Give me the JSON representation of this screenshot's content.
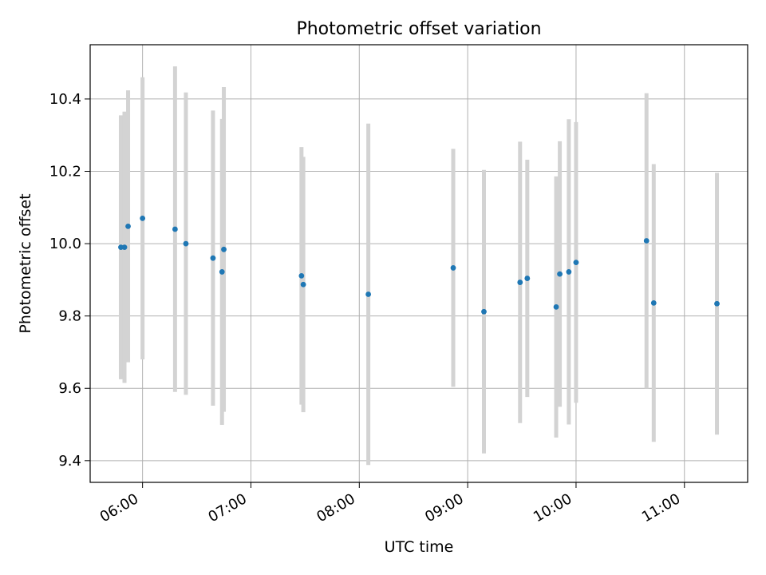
{
  "chart_data": {
    "type": "scatter",
    "title": "Photometric offset variation",
    "xlabel": "UTC time",
    "ylabel": "Photometric offset",
    "xlim": [
      "05:31",
      "11:35"
    ],
    "ylim": [
      9.34,
      10.55
    ],
    "x_ticks": [
      "06:00",
      "07:00",
      "08:00",
      "09:00",
      "10:00",
      "11:00"
    ],
    "y_ticks": [
      9.4,
      9.6,
      9.8,
      10.0,
      10.2,
      10.4
    ],
    "y_tick_labels": [
      "9.4",
      "9.6",
      "9.8",
      "10.0",
      "10.2",
      "10.4"
    ],
    "grid": true,
    "marker_color": "#1f77b4",
    "errorbar_color": "#d3d3d3",
    "series": [
      {
        "points": [
          {
            "x": "05:48",
            "y": 9.99,
            "ylow": 9.625,
            "yhigh": 10.355
          },
          {
            "x": "05:50",
            "y": 9.99,
            "ylow": 9.615,
            "yhigh": 10.365
          },
          {
            "x": "05:52",
            "y": 10.048,
            "ylow": 9.672,
            "yhigh": 10.424
          },
          {
            "x": "06:00",
            "y": 10.07,
            "ylow": 9.68,
            "yhigh": 10.46
          },
          {
            "x": "06:18",
            "y": 10.04,
            "ylow": 9.59,
            "yhigh": 10.49
          },
          {
            "x": "06:24",
            "y": 10.0,
            "ylow": 9.582,
            "yhigh": 10.418
          },
          {
            "x": "06:39",
            "y": 9.96,
            "ylow": 9.552,
            "yhigh": 10.368
          },
          {
            "x": "06:44",
            "y": 9.922,
            "ylow": 9.499,
            "yhigh": 10.345
          },
          {
            "x": "06:45",
            "y": 9.984,
            "ylow": 9.535,
            "yhigh": 10.433
          },
          {
            "x": "07:28",
            "y": 9.911,
            "ylow": 9.555,
            "yhigh": 10.267
          },
          {
            "x": "07:29",
            "y": 9.887,
            "ylow": 9.534,
            "yhigh": 10.24
          },
          {
            "x": "08:05",
            "y": 9.86,
            "ylow": 9.388,
            "yhigh": 10.332
          },
          {
            "x": "08:52",
            "y": 9.933,
            "ylow": 9.604,
            "yhigh": 10.262
          },
          {
            "x": "09:09",
            "y": 9.812,
            "ylow": 9.42,
            "yhigh": 10.204
          },
          {
            "x": "09:29",
            "y": 9.893,
            "ylow": 9.504,
            "yhigh": 10.282
          },
          {
            "x": "09:33",
            "y": 9.904,
            "ylow": 9.576,
            "yhigh": 10.232
          },
          {
            "x": "09:49",
            "y": 9.825,
            "ylow": 9.464,
            "yhigh": 10.186
          },
          {
            "x": "09:51",
            "y": 9.916,
            "ylow": 9.549,
            "yhigh": 10.283
          },
          {
            "x": "09:56",
            "y": 9.922,
            "ylow": 9.5,
            "yhigh": 10.344
          },
          {
            "x": "10:00",
            "y": 9.948,
            "ylow": 9.56,
            "yhigh": 10.336
          },
          {
            "x": "10:39",
            "y": 10.008,
            "ylow": 9.6,
            "yhigh": 10.416
          },
          {
            "x": "10:43",
            "y": 9.836,
            "ylow": 9.452,
            "yhigh": 10.22
          },
          {
            "x": "11:18",
            "y": 9.834,
            "ylow": 9.472,
            "yhigh": 10.196
          }
        ]
      }
    ]
  }
}
